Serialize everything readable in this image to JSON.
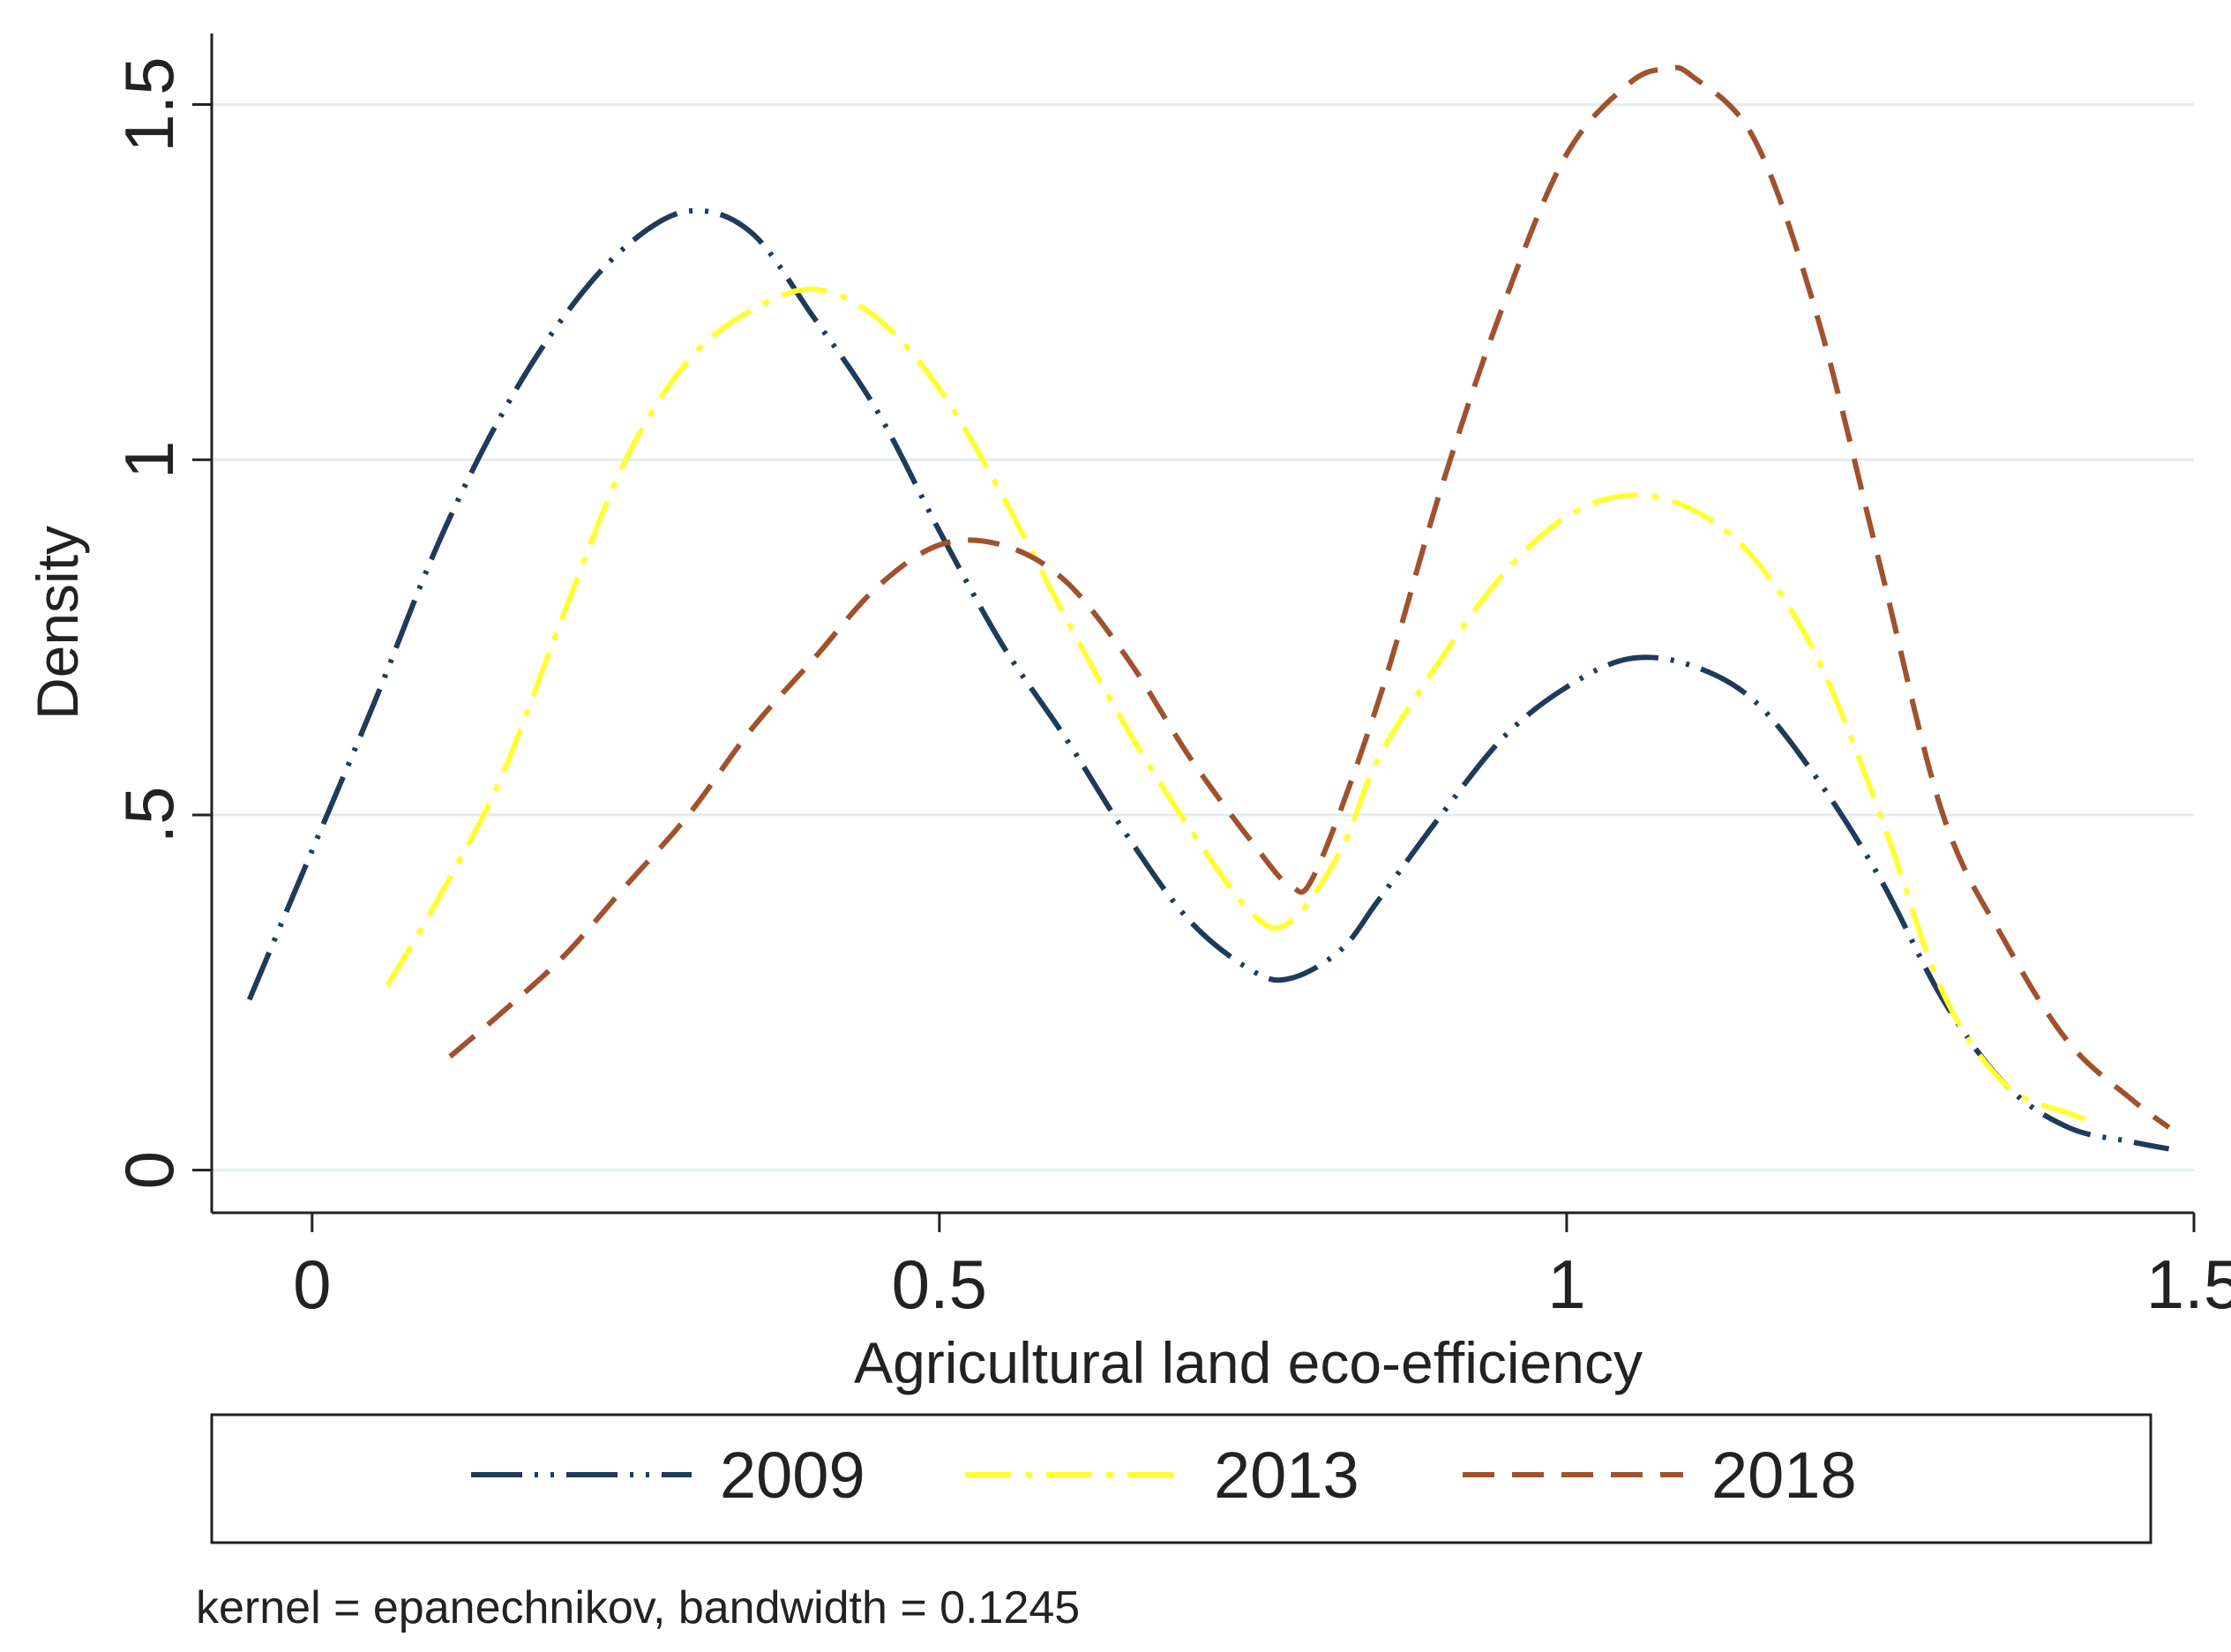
{
  "chart_data": {
    "type": "line",
    "xlabel": "Agricultural land eco-efficiency",
    "ylabel": "Density",
    "xlim": [
      -0.08,
      1.5
    ],
    "ylim": [
      -0.06,
      1.6
    ],
    "xticks": [
      0,
      0.5,
      1,
      1.5
    ],
    "xtick_labels": [
      "0",
      "0.5",
      "1",
      "1.5"
    ],
    "yticks": [
      0,
      0.5,
      1,
      1.5
    ],
    "ytick_labels": [
      "0",
      ".5",
      "1",
      "1.5"
    ],
    "grid": true,
    "legend_position": "bottom",
    "note": "kernel = epanechnikov, bandwidth = 0.1245",
    "series": [
      {
        "name": "2009",
        "color": "#1f3b5c",
        "dash": "long-dash-dot-dot",
        "x": [
          -0.05,
          0.0,
          0.05,
          0.1,
          0.15,
          0.2,
          0.25,
          0.3,
          0.35,
          0.4,
          0.45,
          0.5,
          0.55,
          0.6,
          0.65,
          0.7,
          0.75,
          0.78,
          0.82,
          0.85,
          0.9,
          0.95,
          1.0,
          1.05,
          1.1,
          1.15,
          1.2,
          1.25,
          1.3,
          1.35,
          1.4,
          1.45,
          1.48
        ],
        "values": [
          0.24,
          0.45,
          0.66,
          0.88,
          1.06,
          1.2,
          1.3,
          1.35,
          1.32,
          1.2,
          1.07,
          0.9,
          0.74,
          0.61,
          0.47,
          0.35,
          0.28,
          0.27,
          0.31,
          0.38,
          0.5,
          0.61,
          0.68,
          0.72,
          0.71,
          0.66,
          0.55,
          0.41,
          0.24,
          0.12,
          0.06,
          0.04,
          0.03
        ]
      },
      {
        "name": "2013",
        "color": "#ffff33",
        "dash": "dash-dot",
        "x": [
          0.06,
          0.1,
          0.15,
          0.2,
          0.25,
          0.3,
          0.35,
          0.4,
          0.45,
          0.5,
          0.55,
          0.6,
          0.65,
          0.7,
          0.75,
          0.78,
          0.82,
          0.85,
          0.9,
          0.95,
          1.0,
          1.05,
          1.1,
          1.15,
          1.2,
          1.25,
          1.3,
          1.35,
          1.4,
          1.42
        ],
        "values": [
          0.26,
          0.38,
          0.55,
          0.78,
          1.0,
          1.14,
          1.21,
          1.24,
          1.2,
          1.1,
          0.95,
          0.78,
          0.62,
          0.48,
          0.36,
          0.35,
          0.45,
          0.58,
          0.72,
          0.84,
          0.92,
          0.95,
          0.93,
          0.86,
          0.72,
          0.5,
          0.25,
          0.12,
          0.08,
          0.07
        ]
      },
      {
        "name": "2018",
        "color": "#a0522d",
        "dash": "dashed",
        "x": [
          0.11,
          0.15,
          0.2,
          0.25,
          0.3,
          0.35,
          0.4,
          0.45,
          0.5,
          0.55,
          0.6,
          0.65,
          0.7,
          0.75,
          0.78,
          0.8,
          0.85,
          0.9,
          0.95,
          1.0,
          1.05,
          1.08,
          1.1,
          1.15,
          1.2,
          1.25,
          1.3,
          1.35,
          1.4,
          1.45,
          1.48
        ],
        "values": [
          0.16,
          0.22,
          0.3,
          0.4,
          0.5,
          0.62,
          0.72,
          0.82,
          0.88,
          0.88,
          0.83,
          0.72,
          0.58,
          0.46,
          0.4,
          0.42,
          0.66,
          0.96,
          1.22,
          1.43,
          1.53,
          1.55,
          1.54,
          1.45,
          1.2,
          0.85,
          0.5,
          0.32,
          0.18,
          0.1,
          0.06
        ]
      }
    ]
  }
}
